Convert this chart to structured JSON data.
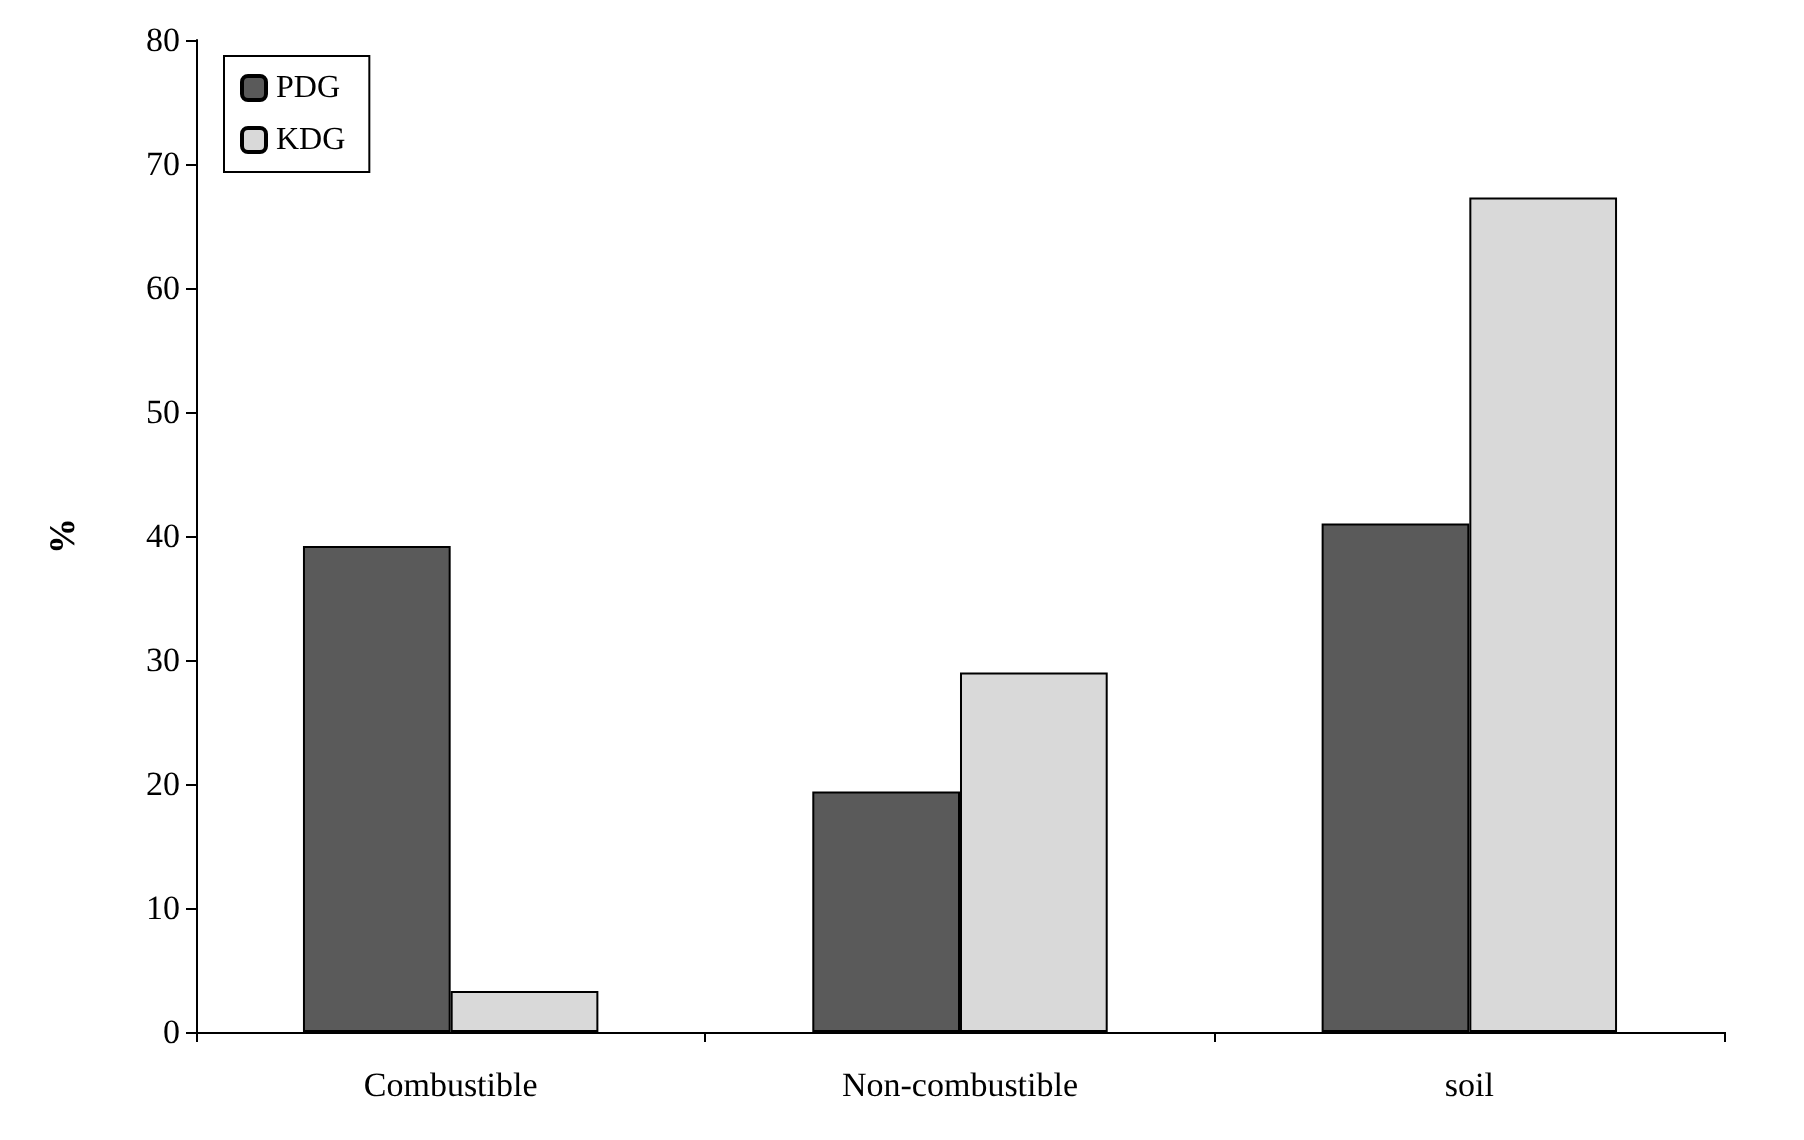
{
  "chart_data": {
    "type": "bar",
    "ylabel": "%",
    "categories": [
      "Combustible",
      "Non-combustible",
      "soil"
    ],
    "series": [
      {
        "name": "PDG",
        "color": "#5a5a5a",
        "values": [
          39.2,
          19.4,
          41.0
        ]
      },
      {
        "name": "KDG",
        "color": "#d9d9d9",
        "values": [
          3.3,
          29.0,
          67.3
        ]
      }
    ],
    "ylim": [
      0,
      80
    ],
    "yticks": [
      0,
      10,
      20,
      30,
      40,
      50,
      60,
      70,
      80
    ],
    "grid": false,
    "legend": "top left"
  }
}
